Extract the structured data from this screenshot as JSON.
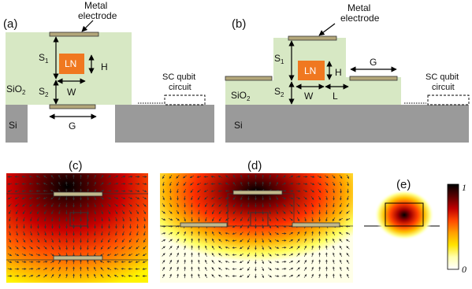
{
  "panels": {
    "a": {
      "letter": "(a)",
      "electrode": "Metal\nelectrode",
      "ln": "LN",
      "s1": "S",
      "s1_sub": "1",
      "s2": "S",
      "s2_sub": "2",
      "h": "H",
      "w": "W",
      "g": "G",
      "sio2": "SiO",
      "sio2_sub": "2",
      "si": "Si",
      "qubit": "SC qubit\ncircuit"
    },
    "b": {
      "letter": "(b)",
      "electrode": "Metal\nelectrode",
      "ln": "LN",
      "s1": "S",
      "s1_sub": "1",
      "s2": "S",
      "s2_sub": "2",
      "h": "H",
      "w": "W",
      "l": "L",
      "g": "G",
      "sio2": "SiO",
      "sio2_sub": "2",
      "si": "Si",
      "qubit": "SC qubit\ncircuit"
    },
    "c": {
      "letter": "(c)"
    },
    "d": {
      "letter": "(d)"
    },
    "e": {
      "letter": "(e)"
    }
  },
  "colorbar": {
    "max_label": "1",
    "min_label": "0",
    "stops": [
      "#000000",
      "#5a0000",
      "#c00000",
      "#ff4a00",
      "#ffa000",
      "#ffe400",
      "#ffffb0",
      "#ffffff"
    ]
  },
  "colors": {
    "oxide": "#d7e8c4",
    "substrate": "#9a9a9a",
    "ln": "#f07820",
    "electrode": "#b3a77a",
    "arrow": "#333333"
  }
}
